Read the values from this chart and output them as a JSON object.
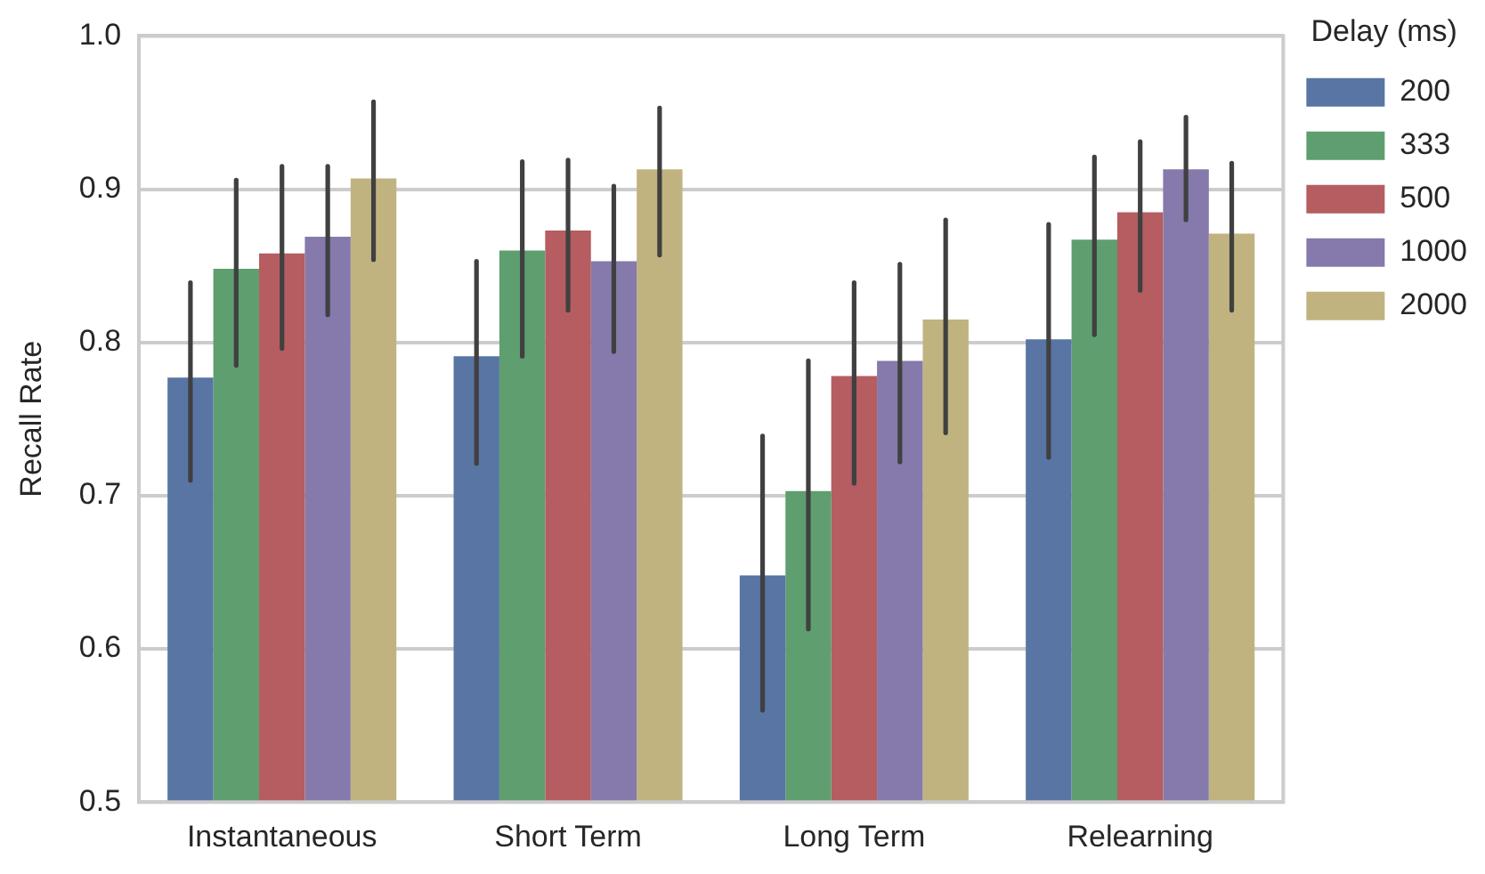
{
  "chart_data": {
    "type": "bar",
    "ylabel": "Recall Rate",
    "legend_title": "Delay (ms)",
    "legend": "top right",
    "grid": "y",
    "categories": [
      "Instantaneous",
      "Short Term",
      "Long Term",
      "Relearning"
    ],
    "ylim": [
      0.5,
      1.0
    ],
    "yticks": [
      0.5,
      0.6,
      0.7,
      0.8,
      0.9,
      {
        "value": 1,
        "label": "1.0"
      }
    ],
    "series": [
      {
        "name": "200",
        "color": "#5875a4",
        "values": [
          0.777,
          0.791,
          0.648,
          0.802
        ],
        "errors": [
          [
            0.71,
            0.839
          ],
          [
            0.721,
            0.853
          ],
          [
            0.56,
            0.739
          ],
          [
            0.725,
            0.877
          ]
        ]
      },
      {
        "name": "333",
        "color": "#5f9e6e",
        "values": [
          0.848,
          0.86,
          0.703,
          0.867
        ],
        "errors": [
          [
            0.785,
            0.906
          ],
          [
            0.791,
            0.918
          ],
          [
            0.613,
            0.788
          ],
          [
            0.805,
            0.921
          ]
        ]
      },
      {
        "name": "500",
        "color": "#b55d60",
        "values": [
          0.858,
          0.873,
          0.778,
          0.885
        ],
        "errors": [
          [
            0.796,
            0.915
          ],
          [
            0.821,
            0.919
          ],
          [
            0.708,
            0.839
          ],
          [
            0.834,
            0.931
          ]
        ]
      },
      {
        "name": "1000",
        "color": "#857aab",
        "values": [
          0.869,
          0.853,
          0.788,
          0.913
        ],
        "errors": [
          [
            0.818,
            0.915
          ],
          [
            0.794,
            0.902
          ],
          [
            0.722,
            0.851
          ],
          [
            0.88,
            0.947
          ]
        ]
      },
      {
        "name": "2000",
        "color": "#c1b37f",
        "values": [
          0.907,
          0.913,
          0.815,
          0.871
        ],
        "errors": [
          [
            0.854,
            0.957
          ],
          [
            0.857,
            0.953
          ],
          [
            0.741,
            0.88
          ],
          [
            0.821,
            0.917
          ]
        ]
      }
    ]
  }
}
